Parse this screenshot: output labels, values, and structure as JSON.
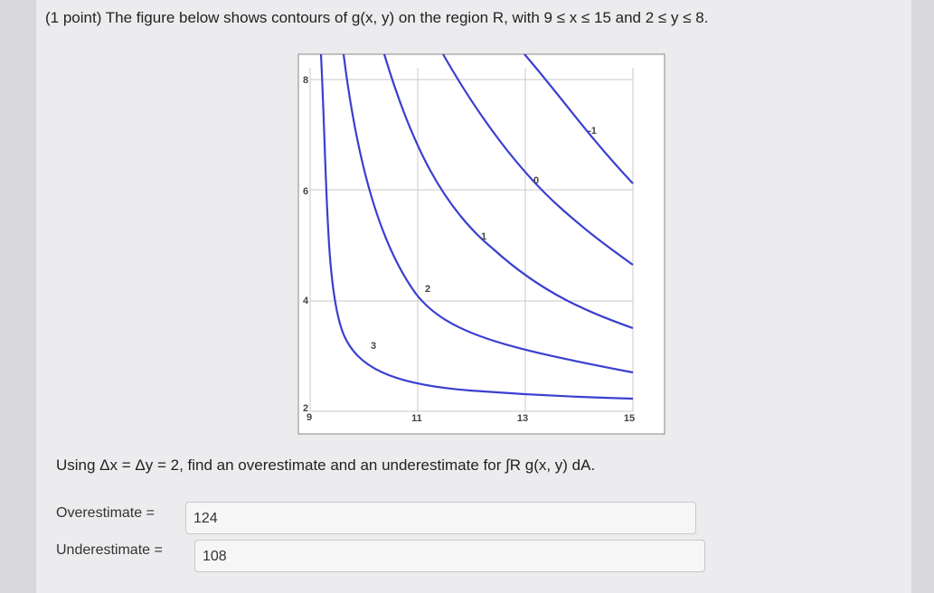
{
  "question": "(1 point) The figure below shows contours of g(x, y) on the region R, with 9 ≤ x ≤ 15 and 2 ≤ y ≤ 8.",
  "figure": {
    "x_tick_labels": [
      "9",
      "11",
      "13",
      "15"
    ],
    "y_tick_labels": [
      "2",
      "4",
      "6",
      "8"
    ],
    "contour_labels": [
      "3",
      "2",
      "1",
      "0",
      "-1"
    ]
  },
  "prompt": "Using Δx = Δy = 2, find an overestimate and an underestimate for ∫R g(x, y) dA.",
  "fields": [
    {
      "label": "Overestimate =",
      "value": "124"
    },
    {
      "label": "Underestimate =",
      "value": "108"
    }
  ]
}
